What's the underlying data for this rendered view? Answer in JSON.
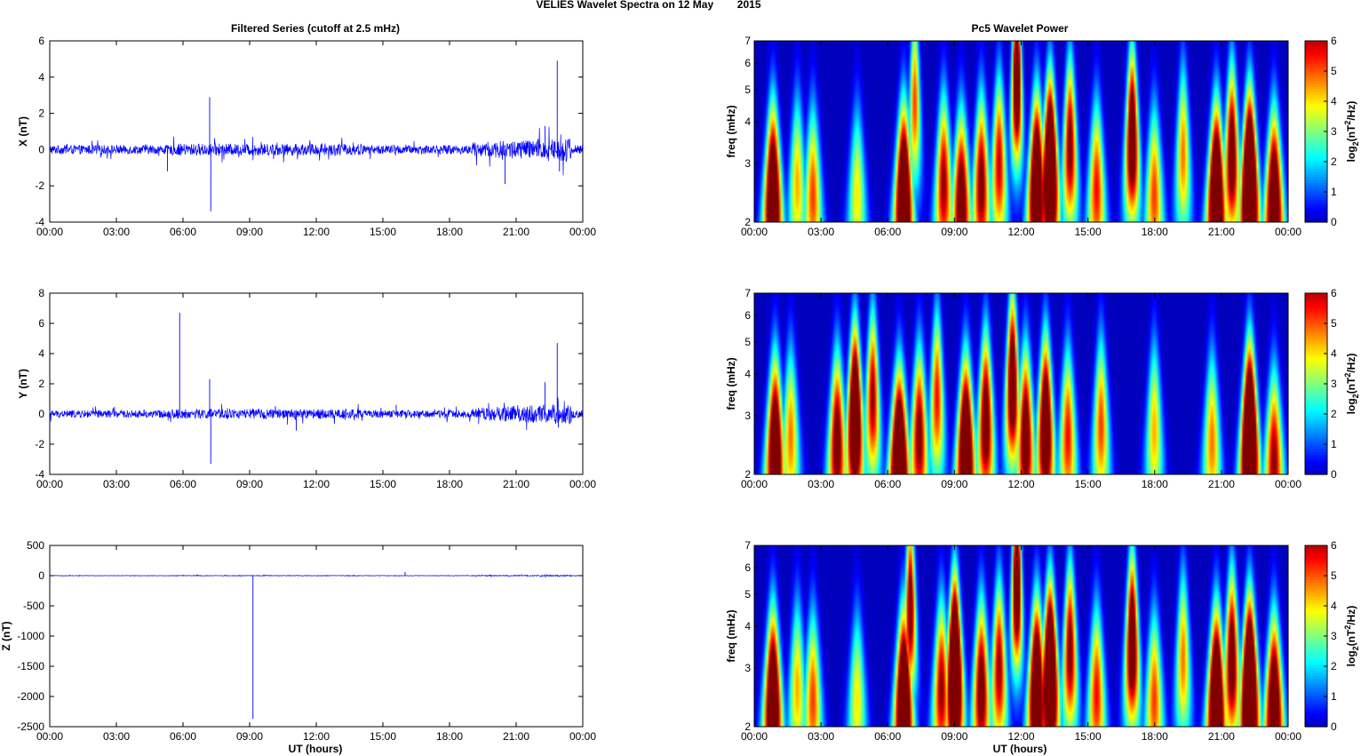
{
  "figure_title": "VELIES Wavelet Spectra on 12 May        2015",
  "left_title": "Filtered Series (cutoff at 2.5 mHz)",
  "right_title": "Pc5 Wavelet Power",
  "x_axis_label": "UT (hours)",
  "freq_axis_label": "freq (mHz)",
  "colorbar_label": "log2(nT2/Hz)",
  "colors": {
    "series_line": "#0000ff",
    "spectrum_background": "#00008f"
  },
  "chart_data": [
    {
      "type": "line",
      "name": "X",
      "ylabel": "X (nT)",
      "xlim_hours": [
        0,
        24
      ],
      "ylim": [
        -4,
        6
      ],
      "x_ticks": [
        "00:00",
        "03:00",
        "06:00",
        "09:00",
        "12:00",
        "15:00",
        "18:00",
        "21:00",
        "00:00"
      ],
      "y_ticks": [
        "-4",
        "-2",
        "0",
        "2",
        "4",
        "6"
      ],
      "baseline_noise_amplitude": 0.25,
      "notable_spikes": [
        {
          "t": 5.3,
          "v": -1.2
        },
        {
          "t": 7.2,
          "v": 2.9
        },
        {
          "t": 7.25,
          "v": -3.4
        },
        {
          "t": 20.5,
          "v": -1.9
        },
        {
          "t": 22.3,
          "v": 1.3
        },
        {
          "t": 22.85,
          "v": 4.9
        },
        {
          "t": 22.95,
          "v": -1.2
        }
      ]
    },
    {
      "type": "line",
      "name": "Y",
      "ylabel": "Y (nT)",
      "xlim_hours": [
        0,
        24
      ],
      "ylim": [
        -4,
        8
      ],
      "x_ticks": [
        "00:00",
        "03:00",
        "06:00",
        "09:00",
        "12:00",
        "15:00",
        "18:00",
        "21:00",
        "00:00"
      ],
      "y_ticks": [
        "-4",
        "-2",
        "0",
        "2",
        "4",
        "6",
        "8"
      ],
      "baseline_noise_amplitude": 0.25,
      "notable_spikes": [
        {
          "t": 5.85,
          "v": 6.7
        },
        {
          "t": 7.2,
          "v": 2.3
        },
        {
          "t": 7.25,
          "v": -3.3
        },
        {
          "t": 11.1,
          "v": -1.1
        },
        {
          "t": 15.6,
          "v": 0.6
        },
        {
          "t": 22.3,
          "v": 2.1
        },
        {
          "t": 22.85,
          "v": 4.7
        },
        {
          "t": 22.9,
          "v": -0.9
        }
      ]
    },
    {
      "type": "line",
      "name": "Z",
      "ylabel": "Z (nT)",
      "xlim_hours": [
        0,
        24
      ],
      "ylim": [
        -2500,
        500
      ],
      "x_ticks": [
        "00:00",
        "03:00",
        "06:00",
        "09:00",
        "12:00",
        "15:00",
        "18:00",
        "21:00",
        "00:00"
      ],
      "y_ticks": [
        "-2500",
        "-2000",
        "-1500",
        "-1000",
        "-500",
        "0",
        "500"
      ],
      "baseline_noise_amplitude": 4,
      "notable_spikes": [
        {
          "t": 9.15,
          "v": -2370
        },
        {
          "t": 16.0,
          "v": 60
        }
      ]
    },
    {
      "type": "heatmap",
      "name": "X wavelet power",
      "ylabel": "freq (mHz)",
      "y_scale": "log",
      "ylim": [
        2,
        7
      ],
      "y_ticks": [
        "2",
        "3",
        "4",
        "5",
        "6",
        "7"
      ],
      "x_ticks": [
        "00:00",
        "03:00",
        "06:00",
        "09:00",
        "12:00",
        "15:00",
        "18:00",
        "21:00",
        "00:00"
      ],
      "color_range": [
        0,
        6
      ],
      "colorbar_ticks": [
        "0",
        "1",
        "2",
        "3",
        "4",
        "5",
        "6"
      ],
      "blobs": [
        {
          "t": 0.8,
          "f": 2.4,
          "p": 4.6
        },
        {
          "t": 1.9,
          "f": 2.6,
          "p": 2.2
        },
        {
          "t": 2.6,
          "f": 2.4,
          "p": 2.6
        },
        {
          "t": 4.6,
          "f": 2.4,
          "p": 2.0
        },
        {
          "t": 6.7,
          "f": 2.4,
          "p": 4.9
        },
        {
          "t": 7.2,
          "f": 4.6,
          "p": 2.6
        },
        {
          "t": 8.5,
          "f": 2.6,
          "p": 3.2
        },
        {
          "t": 9.3,
          "f": 2.3,
          "p": 3.8
        },
        {
          "t": 10.2,
          "f": 2.6,
          "p": 3.4
        },
        {
          "t": 11.0,
          "f": 3.0,
          "p": 3.0
        },
        {
          "t": 11.8,
          "f": 5.5,
          "p": 4.5
        },
        {
          "t": 12.7,
          "f": 2.6,
          "p": 4.8
        },
        {
          "t": 13.3,
          "f": 2.9,
          "p": 5.6
        },
        {
          "t": 14.2,
          "f": 3.4,
          "p": 3.4
        },
        {
          "t": 15.4,
          "f": 2.5,
          "p": 2.8
        },
        {
          "t": 17.0,
          "f": 3.6,
          "p": 4.2
        },
        {
          "t": 18.0,
          "f": 2.4,
          "p": 2.6
        },
        {
          "t": 19.3,
          "f": 3.2,
          "p": 2.4
        },
        {
          "t": 20.8,
          "f": 2.4,
          "p": 5.2
        },
        {
          "t": 21.5,
          "f": 3.2,
          "p": 3.8
        },
        {
          "t": 22.3,
          "f": 2.6,
          "p": 6.0
        },
        {
          "t": 23.4,
          "f": 2.3,
          "p": 4.4
        }
      ]
    },
    {
      "type": "heatmap",
      "name": "Y wavelet power",
      "ylabel": "freq (mHz)",
      "y_scale": "log",
      "ylim": [
        2,
        7
      ],
      "y_ticks": [
        "2",
        "3",
        "4",
        "5",
        "6",
        "7"
      ],
      "x_ticks": [
        "00:00",
        "03:00",
        "06:00",
        "09:00",
        "12:00",
        "15:00",
        "18:00",
        "21:00",
        "00:00"
      ],
      "color_range": [
        0,
        6
      ],
      "colorbar_ticks": [
        "0",
        "1",
        "2",
        "3",
        "4",
        "5",
        "6"
      ],
      "blobs": [
        {
          "t": 0.9,
          "f": 2.4,
          "p": 4.4
        },
        {
          "t": 1.6,
          "f": 2.6,
          "p": 2.4
        },
        {
          "t": 3.7,
          "f": 2.5,
          "p": 3.6
        },
        {
          "t": 4.5,
          "f": 3.0,
          "p": 5.0
        },
        {
          "t": 5.3,
          "f": 3.4,
          "p": 3.2
        },
        {
          "t": 6.5,
          "f": 2.2,
          "p": 5.2
        },
        {
          "t": 7.4,
          "f": 2.6,
          "p": 3.4
        },
        {
          "t": 8.2,
          "f": 3.4,
          "p": 2.8
        },
        {
          "t": 9.5,
          "f": 2.4,
          "p": 4.8
        },
        {
          "t": 10.4,
          "f": 2.9,
          "p": 3.8
        },
        {
          "t": 11.6,
          "f": 3.8,
          "p": 4.2
        },
        {
          "t": 12.2,
          "f": 2.6,
          "p": 3.8
        },
        {
          "t": 13.1,
          "f": 2.8,
          "p": 4.4
        },
        {
          "t": 14.1,
          "f": 2.6,
          "p": 2.8
        },
        {
          "t": 15.6,
          "f": 2.8,
          "p": 2.6
        },
        {
          "t": 18.0,
          "f": 2.7,
          "p": 2.2
        },
        {
          "t": 20.6,
          "f": 2.5,
          "p": 2.4
        },
        {
          "t": 22.3,
          "f": 2.6,
          "p": 5.9
        },
        {
          "t": 23.4,
          "f": 2.2,
          "p": 3.2
        }
      ]
    },
    {
      "type": "heatmap",
      "name": "Z wavelet power",
      "ylabel": "freq (mHz)",
      "y_scale": "log",
      "ylim": [
        2,
        7
      ],
      "y_ticks": [
        "2",
        "3",
        "4",
        "5",
        "6",
        "7"
      ],
      "x_ticks": [
        "00:00",
        "03:00",
        "06:00",
        "09:00",
        "12:00",
        "15:00",
        "18:00",
        "21:00",
        "00:00"
      ],
      "color_range": [
        0,
        6
      ],
      "colorbar_ticks": [
        "0",
        "1",
        "2",
        "3",
        "4",
        "5",
        "6"
      ],
      "blobs": [
        {
          "t": 0.8,
          "f": 2.4,
          "p": 4.6
        },
        {
          "t": 1.9,
          "f": 2.6,
          "p": 2.2
        },
        {
          "t": 2.6,
          "f": 2.4,
          "p": 2.6
        },
        {
          "t": 4.6,
          "f": 2.4,
          "p": 2.0
        },
        {
          "t": 6.7,
          "f": 2.4,
          "p": 5.0
        },
        {
          "t": 7.0,
          "f": 4.6,
          "p": 3.6
        },
        {
          "t": 8.4,
          "f": 2.6,
          "p": 3.2
        },
        {
          "t": 9.0,
          "f": 3.0,
          "p": 6.0
        },
        {
          "t": 10.2,
          "f": 2.6,
          "p": 3.6
        },
        {
          "t": 11.0,
          "f": 3.0,
          "p": 3.2
        },
        {
          "t": 11.8,
          "f": 5.5,
          "p": 4.5
        },
        {
          "t": 12.7,
          "f": 2.6,
          "p": 4.8
        },
        {
          "t": 13.3,
          "f": 2.9,
          "p": 5.6
        },
        {
          "t": 14.2,
          "f": 3.4,
          "p": 3.4
        },
        {
          "t": 15.4,
          "f": 2.5,
          "p": 2.8
        },
        {
          "t": 17.0,
          "f": 3.6,
          "p": 4.2
        },
        {
          "t": 18.0,
          "f": 2.4,
          "p": 2.6
        },
        {
          "t": 19.3,
          "f": 3.2,
          "p": 2.4
        },
        {
          "t": 20.8,
          "f": 2.4,
          "p": 5.2
        },
        {
          "t": 21.5,
          "f": 3.2,
          "p": 3.8
        },
        {
          "t": 22.3,
          "f": 2.6,
          "p": 6.0
        },
        {
          "t": 23.4,
          "f": 2.3,
          "p": 4.4
        }
      ]
    }
  ]
}
